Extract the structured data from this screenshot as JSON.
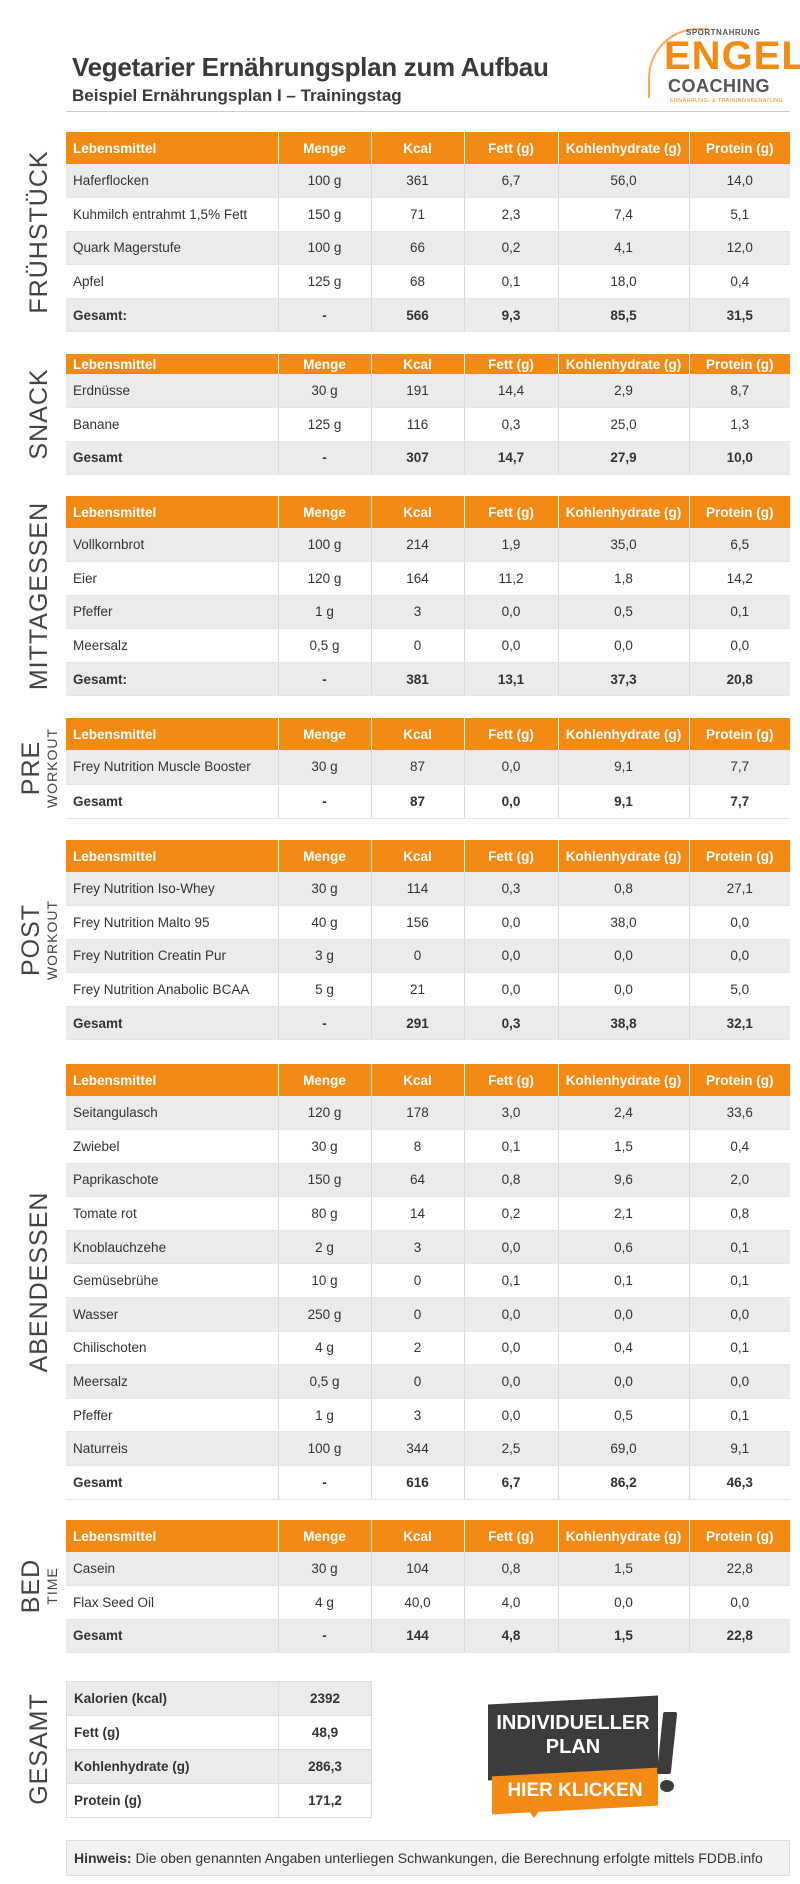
{
  "header": {
    "title": "Vegetarier Ernährungsplan zum Aufbau",
    "subtitle": "Beispiel Ernährungsplan I – Trainingstag"
  },
  "logo": {
    "top": "SPORTNAHRUNG",
    "main": "ENGEL",
    "sub": "COACHING",
    "tagline": "ERNÄHRUNG- & TRAININGSBERATUNG"
  },
  "columns": [
    "Lebensmittel",
    "Menge",
    "Kcal",
    "Fett (g)",
    "Kohlenhydrate (g)",
    "Protein (g)"
  ],
  "meals": {
    "fruehstueck": {
      "label": "FRÜHSTÜCK",
      "rows": [
        [
          "Haferflocken",
          "100 g",
          "361",
          "6,7",
          "56,0",
          "14,0"
        ],
        [
          "Kuhmilch entrahmt 1,5% Fett",
          "150 g",
          "71",
          "2,3",
          "7,4",
          "5,1"
        ],
        [
          "Quark Magerstufe",
          "100 g",
          "66",
          "0,2",
          "4,1",
          "12,0"
        ],
        [
          "Apfel",
          "125 g",
          "68",
          "0,1",
          "18,0",
          "0,4"
        ]
      ],
      "total": [
        "Gesamt:",
        "-",
        "566",
        "9,3",
        "85,5",
        "31,5"
      ]
    },
    "snack": {
      "label": "SNACK",
      "rows": [
        [
          "Erdnüsse",
          "30 g",
          "191",
          "14,4",
          "2,9",
          "8,7"
        ],
        [
          "Banane",
          "125 g",
          "116",
          "0,3",
          "25,0",
          "1,3"
        ]
      ],
      "total": [
        "Gesamt",
        "-",
        "307",
        "14,7",
        "27,9",
        "10,0"
      ]
    },
    "mittagessen": {
      "label": "MITTAGESSEN",
      "rows": [
        [
          "Vollkornbrot",
          "100 g",
          "214",
          "1,9",
          "35,0",
          "6,5"
        ],
        [
          "Eier",
          "120 g",
          "164",
          "11,2",
          "1,8",
          "14,2"
        ],
        [
          "Pfeffer",
          "1 g",
          "3",
          "0,0",
          "0,5",
          "0,1"
        ],
        [
          "Meersalz",
          "0,5 g",
          "0",
          "0,0",
          "0,0",
          "0,0"
        ]
      ],
      "total": [
        "Gesamt:",
        "-",
        "381",
        "13,1",
        "37,3",
        "20,8"
      ]
    },
    "preworkout": {
      "label": "PRE",
      "label_small": "WORKOUT",
      "rows": [
        [
          "Frey Nutrition Muscle Booster",
          "30 g",
          "87",
          "0,0",
          "9,1",
          "7,7"
        ]
      ],
      "total": [
        "Gesamt",
        "-",
        "87",
        "0,0",
        "9,1",
        "7,7"
      ]
    },
    "postworkout": {
      "label": "POST",
      "label_small": "WORKOUT",
      "rows": [
        [
          "Frey Nutrition Iso-Whey",
          "30 g",
          "114",
          "0,3",
          "0,8",
          "27,1"
        ],
        [
          "Frey Nutrition Malto 95",
          "40 g",
          "156",
          "0,0",
          "38,0",
          "0,0"
        ],
        [
          "Frey Nutrition Creatin Pur",
          "3 g",
          "0",
          "0,0",
          "0,0",
          "0,0"
        ],
        [
          "Frey Nutrition Anabolic BCAA",
          "5 g",
          "21",
          "0,0",
          "0,0",
          "5,0"
        ]
      ],
      "total": [
        "Gesamt",
        "-",
        "291",
        "0,3",
        "38,8",
        "32,1"
      ]
    },
    "abendessen": {
      "label": "ABENDESSEN",
      "rows": [
        [
          "Seitangulasch",
          "120 g",
          "178",
          "3,0",
          "2,4",
          "33,6"
        ],
        [
          "Zwiebel",
          "30 g",
          "8",
          "0,1",
          "1,5",
          "0,4"
        ],
        [
          "Paprikaschote",
          "150 g",
          "64",
          "0,8",
          "9,6",
          "2,0"
        ],
        [
          "Tomate rot",
          "80 g",
          "14",
          "0,2",
          "2,1",
          "0,8"
        ],
        [
          "Knoblauchzehe",
          "2 g",
          "3",
          "0,0",
          "0,6",
          "0,1"
        ],
        [
          "Gemüsebrühe",
          "10 g",
          "0",
          "0,1",
          "0,1",
          "0,1"
        ],
        [
          "Wasser",
          "250 g",
          "0",
          "0,0",
          "0,0",
          "0,0"
        ],
        [
          "Chilischoten",
          "4 g",
          "2",
          "0,0",
          "0,4",
          "0,1"
        ],
        [
          "Meersalz",
          "0,5 g",
          "0",
          "0,0",
          "0,0",
          "0,0"
        ],
        [
          "Pfeffer",
          "1 g",
          "3",
          "0,0",
          "0,5",
          "0,1"
        ],
        [
          "Naturreis",
          "100 g",
          "344",
          "2,5",
          "69,0",
          "9,1"
        ]
      ],
      "total": [
        "Gesamt",
        "-",
        "616",
        "6,7",
        "86,2",
        "46,3"
      ]
    },
    "bedtime": {
      "label": "BED",
      "label_small": "TIME",
      "rows": [
        [
          "Casein",
          "30 g",
          "104",
          "0,8",
          "1,5",
          "22,8"
        ],
        [
          "Flax Seed Oil",
          "4 g",
          "40,0",
          "4,0",
          "0,0",
          "0,0"
        ]
      ],
      "total": [
        "Gesamt",
        "-",
        "144",
        "4,8",
        "1,5",
        "22,8"
      ]
    }
  },
  "gesamt": {
    "label": "GESAMT",
    "rows": [
      [
        "Kalorien (kcal)",
        "2392"
      ],
      [
        "Fett (g)",
        "48,9"
      ],
      [
        "Kohlenhydrate (g)",
        "286,3"
      ],
      [
        "Protein (g)",
        "171,2"
      ]
    ]
  },
  "cta": {
    "line1": "INDIVIDUELLER",
    "line2": "PLAN",
    "button": "HIER KLICKEN"
  },
  "note": {
    "label": "Hinweis:",
    "text": " Die oben genannten Angaben unterliegen Schwankungen, die Berechnung erfolgte mittels FDDB.info"
  }
}
